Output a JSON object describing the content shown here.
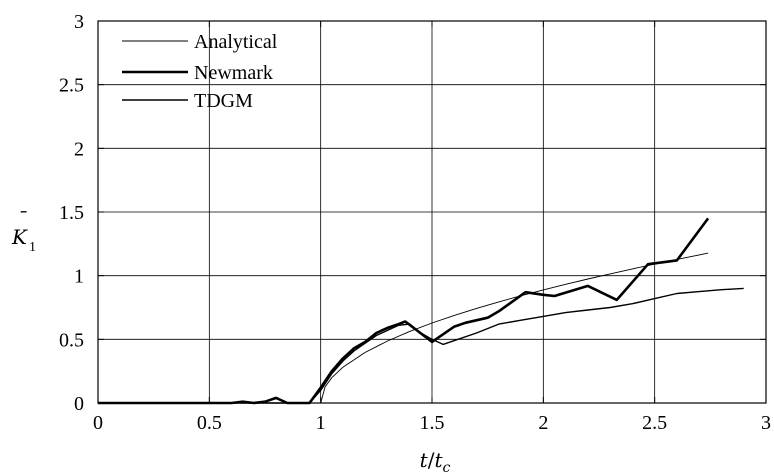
{
  "chart_data": {
    "type": "line",
    "title": "",
    "xlabel": "t/t_c",
    "ylabel": "K̄_1",
    "xlim": [
      0,
      3
    ],
    "ylim": [
      0,
      3
    ],
    "xticks": [
      0,
      0.5,
      1,
      1.5,
      2,
      2.5,
      3
    ],
    "xtick_labels": [
      "0",
      "0.5",
      "1",
      "1.5",
      "2",
      "2.5",
      "3"
    ],
    "yticks": [
      0,
      0.5,
      1,
      1.5,
      2,
      2.5,
      3
    ],
    "ytick_labels": [
      "0",
      "0.5",
      "1",
      "1.5",
      "2",
      "2.5",
      "3"
    ],
    "grid": true,
    "legend_position": "top-left",
    "series": [
      {
        "name": "Analytical",
        "style": "thin",
        "x": [
          0,
          0.95,
          1.0,
          1.02,
          1.05,
          1.1,
          1.2,
          1.3,
          1.4,
          1.5,
          1.6,
          1.7,
          1.8,
          1.9,
          2.0,
          2.1,
          2.2,
          2.3,
          2.4,
          2.5,
          2.6,
          2.7,
          2.74
        ],
        "y": [
          0,
          0,
          0,
          0.127,
          0.199,
          0.281,
          0.397,
          0.487,
          0.562,
          0.628,
          0.688,
          0.743,
          0.794,
          0.843,
          0.888,
          0.932,
          0.974,
          1.014,
          1.053,
          1.091,
          1.128,
          1.163,
          1.177
        ]
      },
      {
        "name": "Newmark",
        "style": "thick",
        "x": [
          0,
          0.3,
          0.5,
          0.6,
          0.65,
          0.7,
          0.75,
          0.8,
          0.85,
          0.95,
          1.0,
          1.05,
          1.1,
          1.15,
          1.2,
          1.25,
          1.3,
          1.35,
          1.38,
          1.5,
          1.6,
          1.65,
          1.75,
          1.8,
          1.92,
          2.0,
          2.05,
          2.2,
          2.33,
          2.47,
          2.6,
          2.74
        ],
        "y": [
          0,
          0,
          0,
          0,
          0.01,
          0,
          0.01,
          0.04,
          0,
          0,
          0.12,
          0.25,
          0.35,
          0.43,
          0.48,
          0.55,
          0.59,
          0.62,
          0.64,
          0.48,
          0.6,
          0.63,
          0.67,
          0.72,
          0.87,
          0.85,
          0.84,
          0.92,
          0.81,
          1.09,
          1.12,
          1.45
        ]
      },
      {
        "name": "TDGM",
        "style": "medium",
        "x": [
          0,
          0.95,
          1.0,
          1.05,
          1.1,
          1.15,
          1.2,
          1.25,
          1.3,
          1.35,
          1.4,
          1.45,
          1.5,
          1.55,
          1.6,
          1.7,
          1.8,
          1.9,
          2.0,
          2.1,
          2.2,
          2.3,
          2.4,
          2.5,
          2.6,
          2.7,
          2.8,
          2.9
        ],
        "y": [
          0,
          0,
          0.1,
          0.23,
          0.33,
          0.41,
          0.47,
          0.53,
          0.57,
          0.61,
          0.62,
          0.55,
          0.5,
          0.46,
          0.49,
          0.55,
          0.62,
          0.65,
          0.68,
          0.71,
          0.73,
          0.75,
          0.78,
          0.82,
          0.86,
          0.875,
          0.89,
          0.9
        ]
      }
    ]
  }
}
